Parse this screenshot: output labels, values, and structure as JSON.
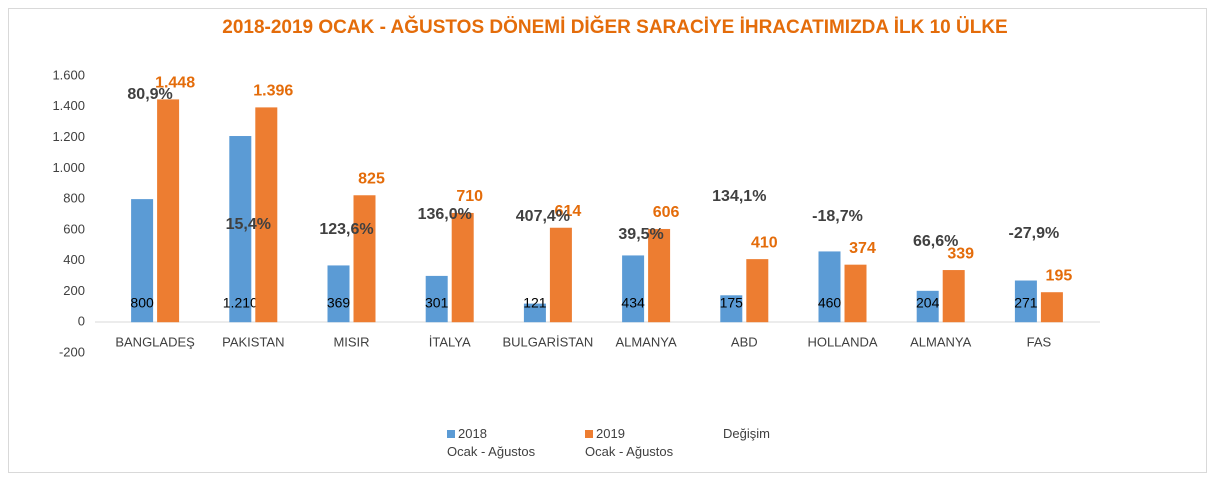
{
  "chart_data": {
    "type": "bar",
    "title": "2018-2019 OCAK - AĞUSTOS DÖNEMİ DİĞER SARACİYE İHRACATIMIZDA İLK  10 ÜLKE",
    "categories": [
      "BANGLADEŞ",
      "PAKISTAN",
      "MISIR",
      "İTALYA",
      "BULGARİSTAN",
      "ALMANYA",
      "ABD",
      "HOLLANDA",
      "ALMANYA",
      "FAS"
    ],
    "series": [
      {
        "name": "2018\nOcak - Ağustos",
        "color": "#5b9bd5",
        "values": [
          800,
          1210,
          369,
          301,
          121,
          434,
          175,
          460,
          204,
          271
        ],
        "value_labels": [
          "800",
          "1.210",
          "369",
          "301",
          "121",
          "434",
          "175",
          "460",
          "204",
          "271"
        ]
      },
      {
        "name": "2019\nOcak - Ağustos",
        "color": "#ed7d31",
        "values": [
          1448,
          1396,
          825,
          710,
          614,
          606,
          410,
          374,
          339,
          195
        ],
        "value_labels": [
          "1.448",
          "1.396",
          "825",
          "710",
          "614",
          "606",
          "410",
          "374",
          "339",
          "195"
        ]
      },
      {
        "name": "Değişim",
        "values": [
          80.9,
          15.4,
          123.6,
          136.0,
          407.4,
          39.5,
          134.1,
          -18.7,
          66.6,
          -27.9
        ],
        "value_labels": [
          "80,9%",
          "15,4%",
          "123,6%",
          "136,0%",
          "407,4%",
          "39,5%",
          "134,1%",
          "-18,7%",
          "66,6%",
          "-27,9%"
        ]
      }
    ],
    "ylim": [
      -200,
      1600
    ],
    "yticks": [
      -200,
      0,
      200,
      400,
      600,
      800,
      {
        "value": 1000,
        "label": "1.000"
      },
      {
        "value": 1200,
        "label": "1.200"
      },
      {
        "value": 1400,
        "label": "1.400"
      },
      {
        "value": 1600,
        "label": "1.600"
      }
    ]
  }
}
